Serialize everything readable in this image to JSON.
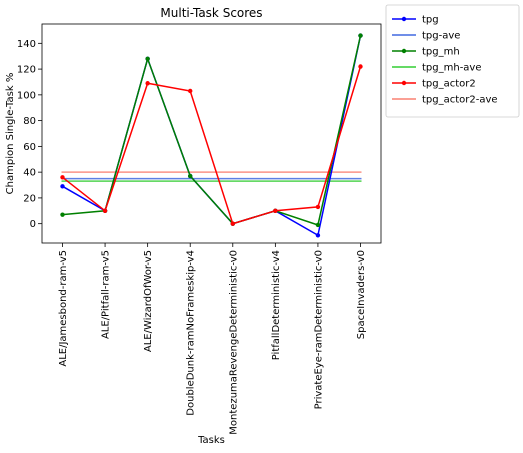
{
  "chart_data": {
    "type": "line",
    "title": "Multi-Task Scores",
    "xlabel": "Tasks",
    "ylabel": "Champion Single-Task %",
    "categories": [
      "ALE/Jamesbond-ram-v5",
      "ALE/Pitfall-ram-v5",
      "ALE/WizardOfWor-v5",
      "DoubleDunk-ramNoFrameskip-v4",
      "MontezumaRevengeDeterministic-v0",
      "PitfallDeterministic-v4",
      "PrivateEye-ramDeterministic-v0",
      "SpaceInvaders-v0"
    ],
    "ylim": [
      -15,
      155
    ],
    "yticks": [
      0,
      20,
      40,
      60,
      80,
      100,
      120,
      140
    ],
    "grid": false,
    "legend_position": "outside-top-right",
    "series": [
      {
        "name": "tpg",
        "kind": "line",
        "color": "#0000ff",
        "values": [
          29,
          10,
          128,
          37,
          0,
          10,
          -9,
          146
        ]
      },
      {
        "name": "tpg-ave",
        "kind": "average",
        "color": "#4169e1",
        "value": 35
      },
      {
        "name": "tpg_mh",
        "kind": "line",
        "color": "#008000",
        "values": [
          7,
          10,
          128,
          37,
          0,
          10,
          -1,
          146
        ]
      },
      {
        "name": "tpg_mh-ave",
        "kind": "average",
        "color": "#32cd32",
        "value": 33
      },
      {
        "name": "tpg_actor2",
        "kind": "line",
        "color": "#ff0000",
        "values": [
          36,
          10,
          109,
          103,
          0,
          10,
          13,
          122
        ]
      },
      {
        "name": "tpg_actor2-ave",
        "kind": "average",
        "color": "#fa8072",
        "value": 40
      }
    ]
  }
}
